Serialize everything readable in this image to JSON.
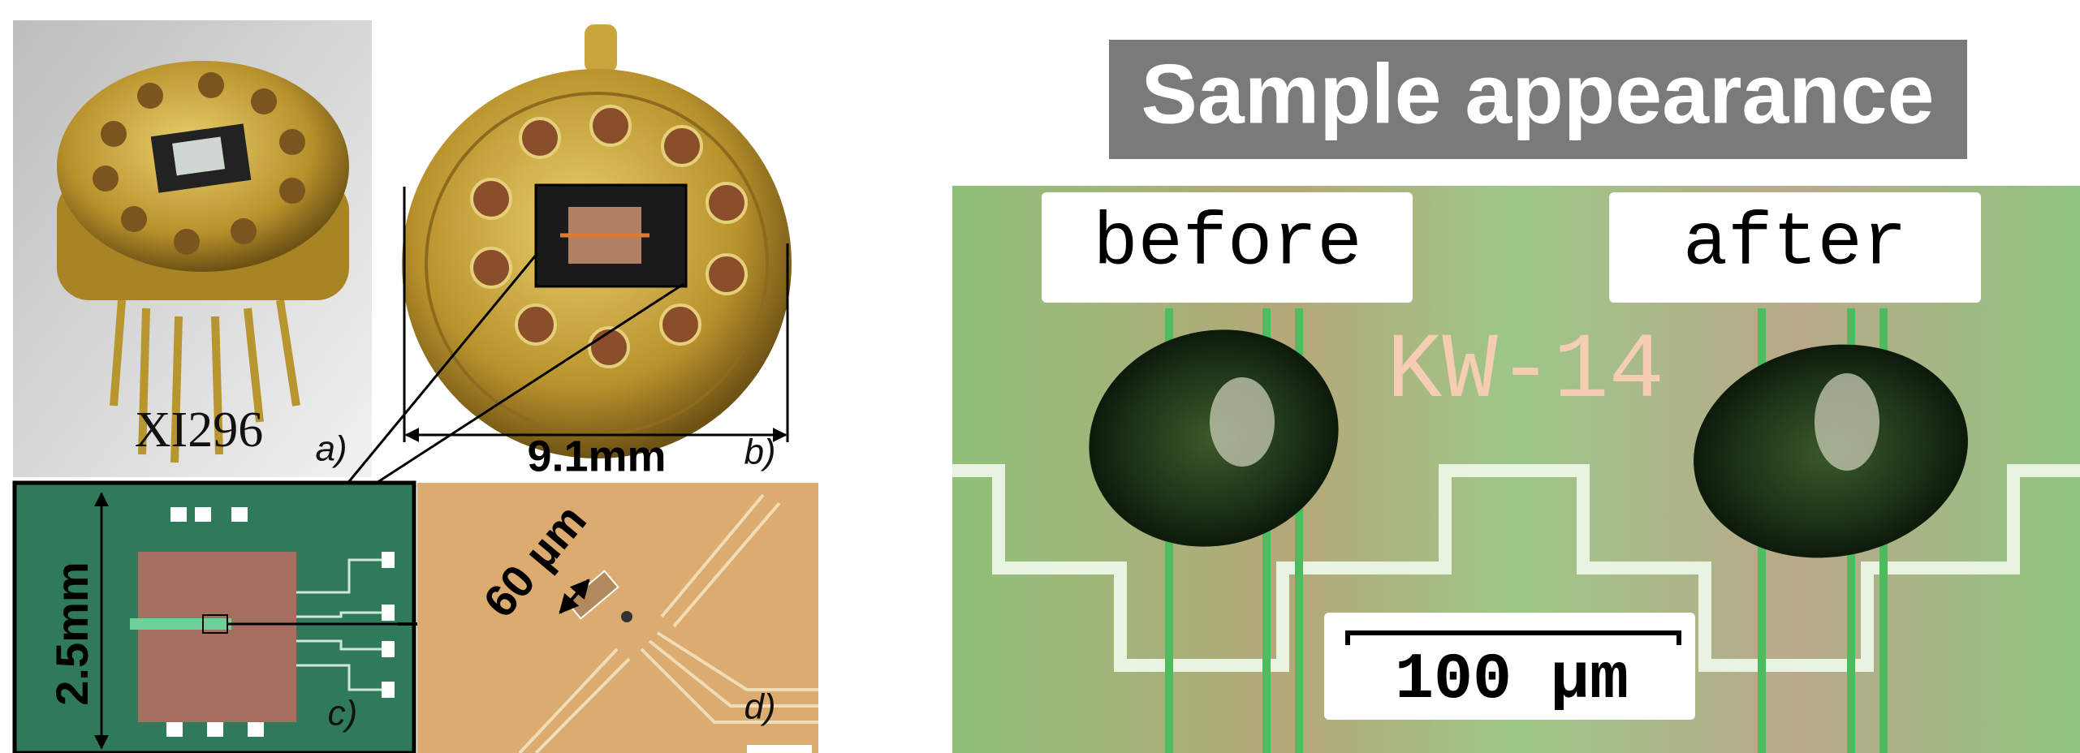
{
  "panels": {
    "a": {
      "caption": "XI296",
      "label": "a)"
    },
    "b": {
      "dimension": "9.1mm",
      "label": "b)"
    },
    "c": {
      "dimension": "2.5mm",
      "label": "c)"
    },
    "d": {
      "dimension": "60 µm",
      "label": "d)"
    }
  },
  "sample": {
    "title": "Sample appearance",
    "before": "before",
    "after": "after",
    "sample_id": "KW-14",
    "scale_bar": "100 µm"
  }
}
